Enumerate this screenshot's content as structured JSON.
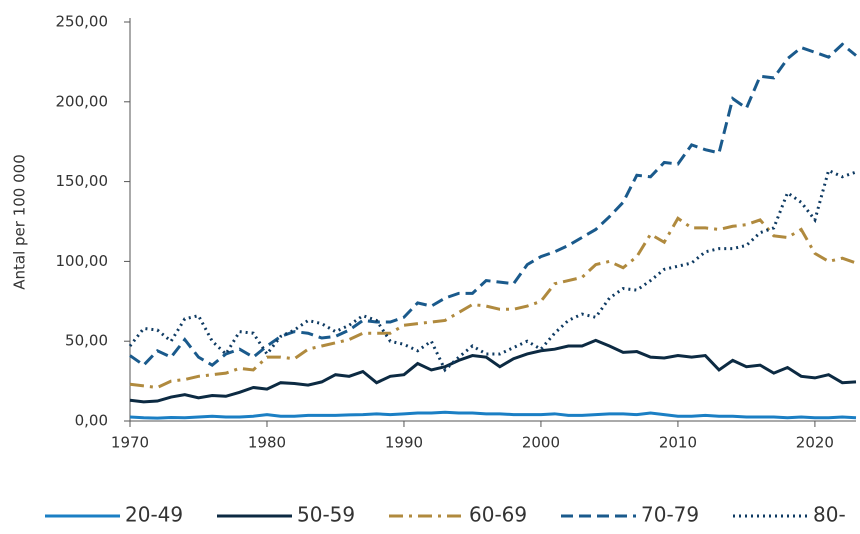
{
  "chart_data": {
    "type": "line",
    "y_label": "Antal per 100 000",
    "x": [
      1970,
      1971,
      1972,
      1973,
      1974,
      1975,
      1976,
      1977,
      1978,
      1979,
      1980,
      1981,
      1982,
      1983,
      1984,
      1985,
      1986,
      1987,
      1988,
      1989,
      1990,
      1991,
      1992,
      1993,
      1994,
      1995,
      1996,
      1997,
      1998,
      1999,
      2000,
      2001,
      2002,
      2003,
      2004,
      2005,
      2006,
      2007,
      2008,
      2009,
      2010,
      2011,
      2012,
      2013,
      2014,
      2015,
      2016,
      2017,
      2018,
      2019,
      2020,
      2021,
      2022,
      2023
    ],
    "xlim": [
      1970,
      2023
    ],
    "xticks": [
      1970,
      1980,
      1990,
      2000,
      2010,
      2020
    ],
    "ylim": [
      0,
      250
    ],
    "yticks": [
      {
        "value": 0,
        "label": "0,00"
      },
      {
        "value": 50,
        "label": "50,00"
      },
      {
        "value": 100,
        "label": "100,00"
      },
      {
        "value": 150,
        "label": "150,00"
      },
      {
        "value": 200,
        "label": "200,00"
      },
      {
        "value": 250,
        "label": "250,00"
      }
    ],
    "legend": "bottom",
    "series": [
      {
        "name": "20-49",
        "color": "#1b7fc4",
        "style": "solid",
        "values": [
          2.5,
          2,
          1.8,
          2.2,
          2,
          2.5,
          3,
          2.5,
          2.5,
          3,
          4,
          3,
          3,
          3.5,
          3.5,
          3.5,
          3.8,
          4,
          4.5,
          4,
          4.5,
          5,
          5,
          5.5,
          5,
          5,
          4.5,
          4.5,
          4,
          4,
          4,
          4.5,
          3.5,
          3.5,
          4,
          4.5,
          4.5,
          4,
          5,
          4,
          3,
          3,
          3.5,
          3,
          3,
          2.5,
          2.5,
          2.5,
          2,
          2.5,
          2,
          2,
          2.5,
          2
        ]
      },
      {
        "name": "50-59",
        "color": "#0c2a42",
        "style": "solid",
        "values": [
          13,
          12,
          12.5,
          15,
          16.5,
          14.5,
          16,
          15.5,
          18,
          21,
          20,
          24,
          23.5,
          22.5,
          24.5,
          29,
          28,
          31,
          24,
          28,
          29,
          36,
          32,
          34,
          38,
          41,
          40,
          34,
          39,
          42,
          44,
          45,
          47,
          47,
          50.5,
          47,
          43,
          43.5,
          40,
          39.5,
          41,
          40,
          41,
          32,
          38,
          34,
          35,
          30,
          33.5,
          28,
          27,
          29,
          24,
          24.5
        ]
      },
      {
        "name": "60-69",
        "color": "#b08a3e",
        "style": "dashdot",
        "values": [
          23,
          22,
          21,
          25,
          26,
          28,
          29,
          30,
          33,
          32,
          40,
          40,
          39,
          45,
          47,
          49,
          51,
          55,
          55,
          55,
          60,
          61,
          62,
          63,
          68,
          73,
          72,
          70,
          70,
          72,
          75,
          86,
          88,
          90,
          98,
          100,
          96,
          103,
          117,
          112,
          127,
          121,
          121,
          120,
          122,
          123,
          126,
          116,
          115,
          120,
          105,
          100,
          102,
          99
        ]
      },
      {
        "name": "70-79",
        "color": "#1a5a8c",
        "style": "dashed",
        "values": [
          41,
          35,
          44,
          40,
          51,
          40,
          35,
          42,
          45,
          40,
          47,
          53,
          56,
          55,
          52,
          53,
          57,
          63,
          62,
          62,
          65,
          74,
          72,
          77,
          80,
          80,
          88,
          87,
          86,
          98,
          103,
          106,
          110,
          115,
          120,
          128,
          137,
          154,
          153,
          162,
          161,
          173,
          170,
          168,
          202,
          196,
          216,
          215,
          227,
          234,
          231,
          228,
          236,
          229
        ]
      },
      {
        "name": "80-",
        "color": "#0e3a62",
        "style": "dotted",
        "values": [
          47,
          58,
          57,
          50,
          64,
          66,
          50,
          42,
          56,
          55,
          42,
          53,
          57,
          63,
          61,
          56,
          60,
          66,
          63,
          50,
          48,
          44,
          50,
          32,
          40,
          47,
          42,
          42,
          46,
          50,
          45,
          55,
          63,
          67,
          65,
          77,
          83,
          82,
          88,
          95,
          97,
          99,
          106,
          108,
          108,
          110,
          118,
          121,
          143,
          137,
          126,
          157,
          153,
          156
        ]
      }
    ]
  }
}
